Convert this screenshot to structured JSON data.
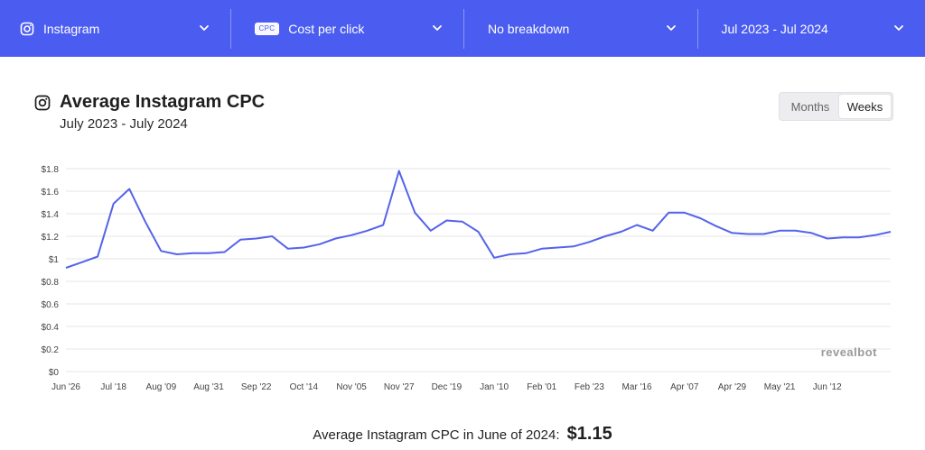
{
  "filters": {
    "platform": {
      "label": "Instagram",
      "icon": "instagram-icon"
    },
    "metric": {
      "badge": "CPC",
      "label": "Cost per click"
    },
    "breakdown": {
      "label": "No breakdown"
    },
    "date_range": {
      "label": "Jul 2023 - Jul 2024"
    }
  },
  "colors": {
    "header_bg": "#4b5cf0",
    "line": "#5563ea",
    "grid": "#e6e6e6"
  },
  "header": {
    "title": "Average Instagram CPC",
    "subtitle": "July 2023 - July 2024",
    "toggle": {
      "months": "Months",
      "weeks": "Weeks",
      "selected": "Weeks"
    }
  },
  "watermark": "revealbot",
  "footer": {
    "text": "Average Instagram CPC in June of 2024:",
    "value": "$1.15"
  },
  "chart_data": {
    "type": "line",
    "title": "Average Instagram CPC",
    "ylim": [
      0,
      1.8
    ],
    "y_ticks": [
      "$0",
      "$0.2",
      "$0.4",
      "$0.6",
      "$0.8",
      "$1",
      "$1.2",
      "$1.4",
      "$1.6",
      "$1.8"
    ],
    "y_tick_values": [
      0,
      0.2,
      0.4,
      0.6,
      0.8,
      1.0,
      1.2,
      1.4,
      1.6,
      1.8
    ],
    "x_tick_labels": [
      "Jun '26",
      "Jul '18",
      "Aug '09",
      "Aug '31",
      "Sep '22",
      "Oct '14",
      "Nov '05",
      "Nov '27",
      "Dec '19",
      "Jan '10",
      "Feb '01",
      "Feb '23",
      "Mar '16",
      "Apr '07",
      "Apr '29",
      "May '21",
      "Jun '12"
    ],
    "x_tick_index": [
      0,
      3,
      6,
      9,
      12,
      15,
      18,
      21,
      24,
      27,
      30,
      33,
      36,
      39,
      42,
      45,
      48
    ],
    "grid": true,
    "series": [
      {
        "name": "",
        "values": [
          0.92,
          0.97,
          1.02,
          1.49,
          1.62,
          1.33,
          1.07,
          1.04,
          1.05,
          1.05,
          1.06,
          1.17,
          1.18,
          1.2,
          1.09,
          1.1,
          1.13,
          1.18,
          1.21,
          1.25,
          1.3,
          1.78,
          1.41,
          1.25,
          1.34,
          1.33,
          1.24,
          1.01,
          1.04,
          1.05,
          1.09,
          1.1,
          1.11,
          1.15,
          1.2,
          1.24,
          1.3,
          1.25,
          1.41,
          1.41,
          1.36,
          1.29,
          1.23,
          1.22,
          1.22,
          1.25,
          1.25,
          1.23,
          1.18,
          1.19,
          1.19,
          1.21,
          1.24
        ]
      }
    ]
  }
}
